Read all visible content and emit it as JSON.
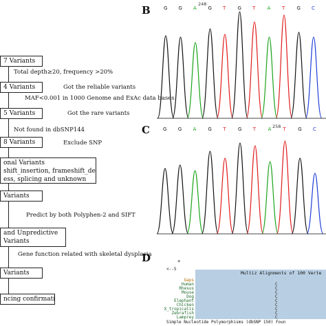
{
  "panels": {
    "b": "B",
    "c": "C",
    "d": "D"
  },
  "flow": {
    "boxes": [
      "7 Variants",
      "4 Variants",
      "5 Variants",
      "8 Variants",
      "onal Variants\nshift_insertion, frameshift_deletion,\ness, splicing and unknown",
      "Variants",
      "and Unpredictive\nVariants",
      "Variants",
      "ncing confirmation"
    ],
    "notes": [
      "Total depth≥20, frequency >20%",
      "Got the reliable variants",
      "MAF<0.001 in 1000 Genome and ExAc data bases",
      "Got the rare variants",
      "Not found in dbSNP144",
      "Exclude SNP",
      "Predict by both Polyphen-2 and SIFT",
      "Gene function related with skeletal dysplasia"
    ]
  },
  "chromatogram_b": {
    "bases": [
      "G",
      "G",
      "A",
      "G",
      "T",
      "G",
      "T",
      "A",
      "T",
      "G",
      "C"
    ],
    "position": "248"
  },
  "chromatogram_c": {
    "bases": [
      "G",
      "G",
      "A",
      "G",
      "T",
      "G",
      "T",
      "A",
      "T",
      "G",
      "C"
    ],
    "position": "258"
  },
  "alignment": {
    "title": "Multiz Alignments of 100 Verte",
    "axis_mark": "+",
    "scale": "<--5",
    "species": [
      "Gaps",
      "Human",
      "Rhesus",
      "Mouse",
      "Dog",
      "Elephant",
      "Chicken",
      "X_tropicalis",
      "Zebrafish",
      "Lamprey"
    ],
    "column_base": "C",
    "footer": "Simple Nucleotide Polymorphisms (dbSNP 150) Foun"
  },
  "colors": {
    "A": "#1aa31a",
    "C": "#1f3dd6",
    "G": "#111111",
    "T": "#e01a1a"
  }
}
